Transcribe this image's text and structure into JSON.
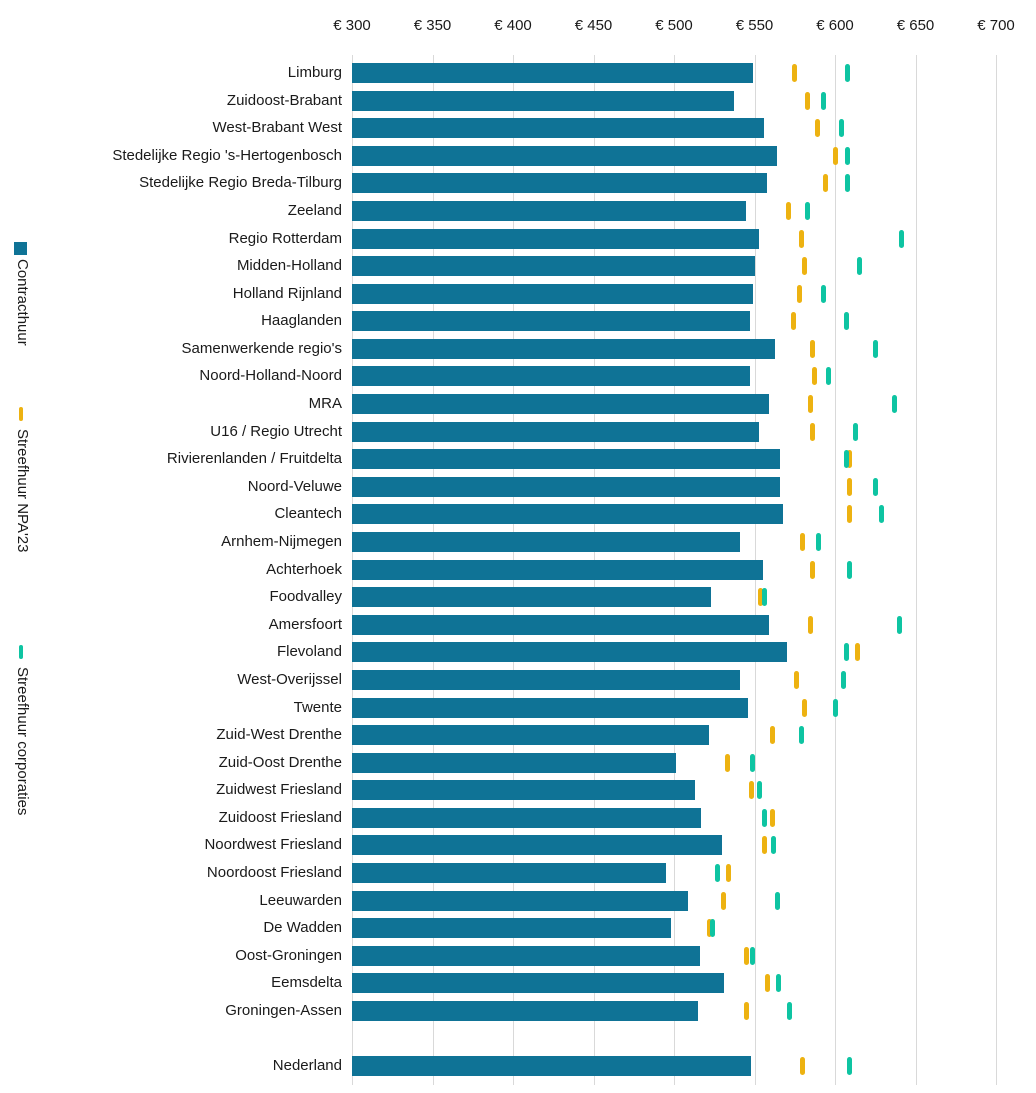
{
  "chart_data": {
    "type": "bar",
    "title": "",
    "orientation": "horizontal",
    "grid": true,
    "legend_position": "left-rotated",
    "x_axis": {
      "tick_prefix": "€ ",
      "ticks": [
        300,
        350,
        400,
        450,
        500,
        550,
        600,
        650,
        700
      ],
      "min": 300,
      "max": 700
    },
    "colors": {
      "bar": "#0F7396",
      "npa23_marker": "#EDB211",
      "corporaties_marker": "#0EC4A2",
      "gridline": "#D9D9D9",
      "text": "#1A1A1A"
    },
    "legend": [
      {
        "label": "Contracthuur",
        "series": "Contracthuur",
        "marker": "square",
        "color": "#0F7396"
      },
      {
        "label": "Streefhuur NPA'23",
        "series": "Streefhuur NPA'23",
        "marker": "dash",
        "color": "#EDB211"
      },
      {
        "label": "Streefhuur corporaties",
        "series": "Streefhuur corporaties",
        "marker": "dash",
        "color": "#0EC4A2"
      }
    ],
    "categories": [
      "Limburg",
      "Zuidoost-Brabant",
      "West-Brabant West",
      "Stedelijke Regio 's-Hertogenbosch",
      "Stedelijke Regio Breda-Tilburg",
      "Zeeland",
      "Regio Rotterdam",
      "Midden-Holland",
      "Holland Rijnland",
      "Haaglanden",
      "Samenwerkende regio's",
      "Noord-Holland-Noord",
      "MRA",
      "U16 / Regio Utrecht",
      "Rivierenlanden / Fruitdelta",
      "Noord-Veluwe",
      "Cleantech",
      "Arnhem-Nijmegen",
      "Achterhoek",
      "Foodvalley",
      "Amersfoort",
      "Flevoland",
      "West-Overijssel",
      "Twente",
      "Zuid-West Drenthe",
      "Zuid-Oost Drenthe",
      "Zuidwest Friesland",
      "Zuidoost Friesland",
      "Noordwest Friesland",
      "Noordoost Friesland",
      "Leeuwarden",
      "De Wadden",
      "Oost-Groningen",
      "Eemsdelta",
      "Groningen-Assen",
      "Nederland"
    ],
    "separated_category": "Nederland",
    "series": [
      {
        "name": "Contracthuur",
        "type": "bar",
        "values": [
          549,
          537,
          556,
          564,
          558,
          545,
          553,
          550,
          549,
          547,
          563,
          547,
          559,
          553,
          566,
          566,
          568,
          541,
          555,
          523,
          559,
          570,
          541,
          546,
          522,
          501,
          513,
          517,
          530,
          495,
          509,
          498,
          516,
          531,
          515,
          548
        ]
      },
      {
        "name": "Streefhuur NPA'23",
        "type": "tick",
        "values": [
          575,
          583,
          589,
          600,
          594,
          571,
          579,
          581,
          578,
          574,
          586,
          587,
          585,
          586,
          609,
          609,
          609,
          580,
          586,
          554,
          585,
          614,
          576,
          581,
          561,
          533,
          548,
          561,
          556,
          534,
          531,
          522,
          545,
          558,
          545,
          580
        ]
      },
      {
        "name": "Streefhuur corporaties",
        "type": "tick",
        "values": [
          608,
          593,
          604,
          608,
          608,
          583,
          641,
          615,
          593,
          607,
          625,
          596,
          637,
          613,
          607,
          625,
          629,
          590,
          609,
          556,
          640,
          607,
          605,
          600,
          579,
          549,
          553,
          556,
          562,
          527,
          564,
          524,
          549,
          565,
          572,
          609
        ]
      }
    ]
  }
}
